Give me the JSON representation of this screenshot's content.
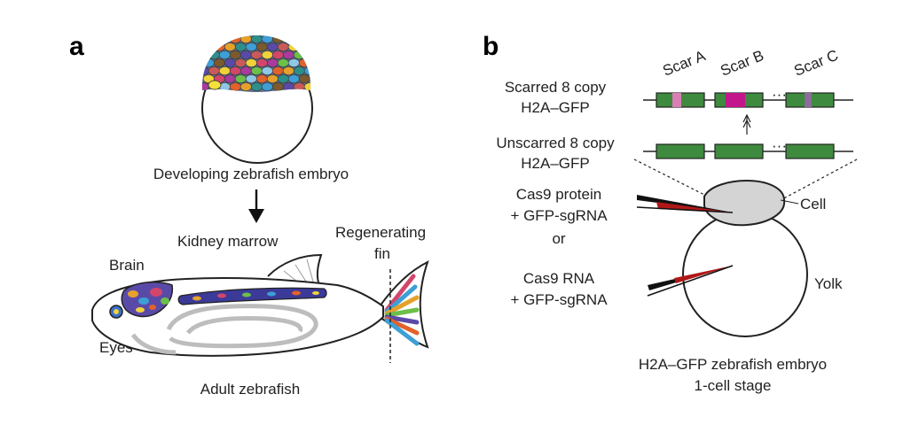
{
  "panel_a": {
    "letter": "a",
    "embryo_caption": "Developing zebrafish embryo",
    "labels": {
      "kidney_marrow": "Kidney marrow",
      "regenerating_fin_line1": "Regenerating",
      "regenerating_fin_line2": "fin",
      "brain": "Brain",
      "eyes": "Eyes"
    },
    "adult_caption": "Adult zebrafish"
  },
  "panel_b": {
    "letter": "b",
    "scars": [
      "Scar A",
      "Scar B",
      "Scar C"
    ],
    "scarred_line1": "Scarred 8 copy",
    "scarred_line2": "H2A–GFP",
    "unscarred_line1": "Unscarred 8 copy",
    "unscarred_line2": "H2A–GFP",
    "ellipsis": "···",
    "cas9_protein_line1": "Cas9 protein",
    "cas9_protein_line2": "+ GFP-sgRNA",
    "or": "or",
    "cas9_rna_line1": "Cas9 RNA",
    "cas9_rna_line2": "+ GFP-sgRNA",
    "cell": "Cell",
    "yolk": "Yolk",
    "caption_line1": "H2A–GFP zebrafish embryo",
    "caption_line2": "1-cell stage"
  },
  "colors": {
    "gfp_green": "#3e8a3e",
    "scar_magenta": "#c2168c",
    "scar_pink": "#d97fb5",
    "needle_red": "#b01818",
    "cell_gray": "#d4d4d4"
  }
}
